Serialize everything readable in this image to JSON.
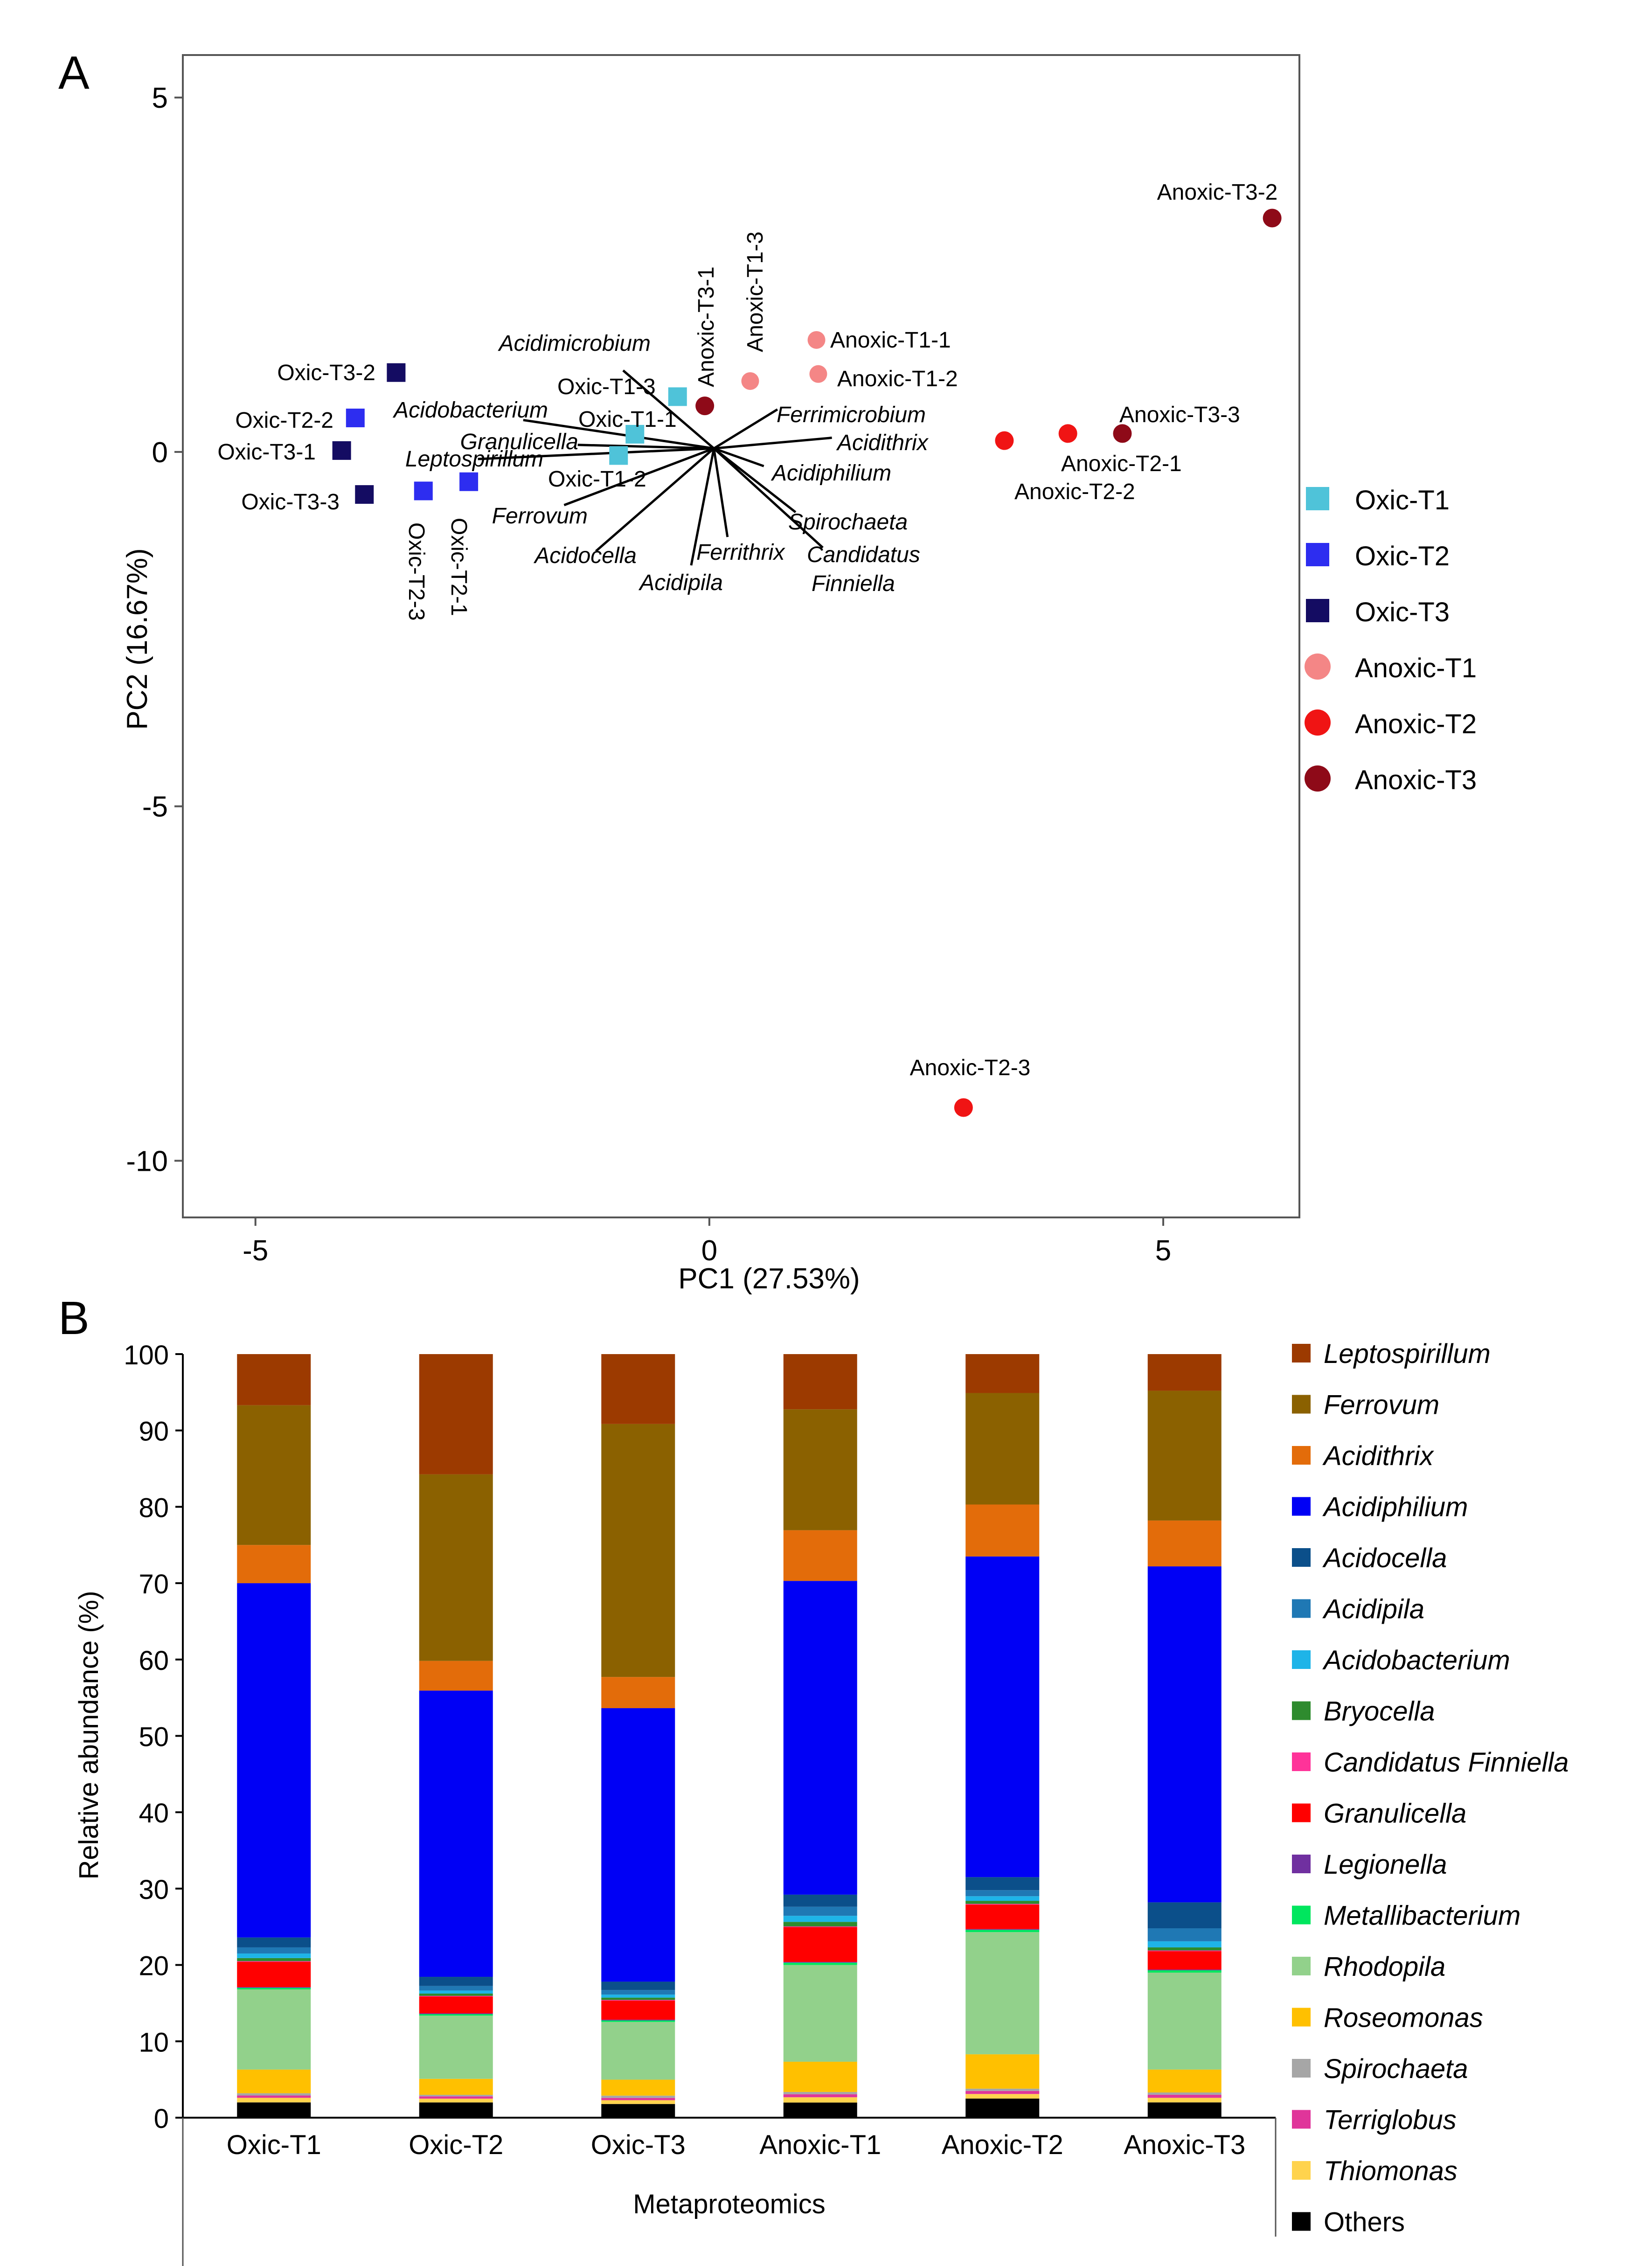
{
  "chart_data": [
    {
      "type": "scatter",
      "panel_label": "A",
      "xlabel": "PC1 (27.53%)",
      "ylabel": "PC2 (16.67%)",
      "xlim": [
        -5.8,
        6.5
      ],
      "ylim": [
        -10.8,
        5.6
      ],
      "xticks": [
        -5,
        0,
        5
      ],
      "yticks": [
        5,
        0,
        -5,
        -10
      ],
      "xtick_labels": [
        "-5",
        "0",
        "5"
      ],
      "ytick_labels": [
        "5",
        "0",
        "-5",
        "-10"
      ],
      "grid": false,
      "legend_position": "right",
      "groups": [
        {
          "name": "Oxic-T1",
          "shape": "square",
          "color": "#4FC3D9"
        },
        {
          "name": "Oxic-T2",
          "shape": "square",
          "color": "#2D2DF0"
        },
        {
          "name": "Oxic-T3",
          "shape": "square",
          "color": "#140C62"
        },
        {
          "name": "Anoxic-T1",
          "shape": "circle",
          "color": "#F48686"
        },
        {
          "name": "Anoxic-T2",
          "shape": "circle",
          "color": "#F01414"
        },
        {
          "name": "Anoxic-T3",
          "shape": "circle",
          "color": "#8E0A18"
        }
      ],
      "samples": [
        {
          "label": "Oxic-T1-1",
          "group": "Oxic-T1",
          "x": -0.82,
          "y": 0.25
        },
        {
          "label": "Oxic-T1-2",
          "group": "Oxic-T1",
          "x": -1.0,
          "y": -0.05
        },
        {
          "label": "Oxic-T1-3",
          "group": "Oxic-T1",
          "x": -0.35,
          "y": 0.78
        },
        {
          "label": "Oxic-T2-1",
          "group": "Oxic-T2",
          "x": -2.65,
          "y": -0.42
        },
        {
          "label": "Oxic-T2-2",
          "group": "Oxic-T2",
          "x": -3.9,
          "y": 0.48
        },
        {
          "label": "Oxic-T2-3",
          "group": "Oxic-T2",
          "x": -3.15,
          "y": -0.55
        },
        {
          "label": "Oxic-T3-1",
          "group": "Oxic-T3",
          "x": -4.05,
          "y": 0.02
        },
        {
          "label": "Oxic-T3-2",
          "group": "Oxic-T3",
          "x": -3.45,
          "y": 1.12
        },
        {
          "label": "Oxic-T3-3",
          "group": "Oxic-T3",
          "x": -3.8,
          "y": -0.6
        },
        {
          "label": "Anoxic-T1-1",
          "group": "Anoxic-T1",
          "x": 1.18,
          "y": 1.58
        },
        {
          "label": "Anoxic-T1-2",
          "group": "Anoxic-T1",
          "x": 1.2,
          "y": 1.1
        },
        {
          "label": "Anoxic-T1-3",
          "group": "Anoxic-T1",
          "x": 0.45,
          "y": 1.0
        },
        {
          "label": "Anoxic-T2-1",
          "group": "Anoxic-T2",
          "x": 3.95,
          "y": 0.26
        },
        {
          "label": "Anoxic-T2-2",
          "group": "Anoxic-T2",
          "x": 3.25,
          "y": 0.16
        },
        {
          "label": "Anoxic-T2-3",
          "group": "Anoxic-T2",
          "x": 2.8,
          "y": -9.25
        },
        {
          "label": "Anoxic-T3-1",
          "group": "Anoxic-T3",
          "x": -0.05,
          "y": 0.65
        },
        {
          "label": "Anoxic-T3-2",
          "group": "Anoxic-T3",
          "x": 6.2,
          "y": 3.3
        },
        {
          "label": "Anoxic-T3-3",
          "group": "Anoxic-T3",
          "x": 4.55,
          "y": 0.26
        }
      ],
      "loadings": [
        {
          "label": "Acidimicrobium",
          "x": -0.95,
          "y": 1.15
        },
        {
          "label": "Acidobacterium",
          "x": -2.05,
          "y": 0.45
        },
        {
          "label": "Granulicella",
          "x": -1.45,
          "y": 0.1
        },
        {
          "label": "Leptospirillum",
          "x": -2.55,
          "y": -0.1
        },
        {
          "label": "Ferrovum",
          "x": -1.6,
          "y": -0.75
        },
        {
          "label": "Acidocella",
          "x": -1.25,
          "y": -1.4
        },
        {
          "label": "Ferrimicrobium",
          "x": 0.75,
          "y": 0.6
        },
        {
          "label": "Acidithrix",
          "x": 1.35,
          "y": 0.2
        },
        {
          "label": "Acidiphilium",
          "x": 0.6,
          "y": -0.2
        },
        {
          "label": "Spirochaeta",
          "x": 0.95,
          "y": -0.85
        },
        {
          "label": "Candidatus Finniella",
          "x": 1.25,
          "y": -1.35
        },
        {
          "label": "Ferrithrix",
          "x": 0.2,
          "y": -1.2
        },
        {
          "label": "Acidipila",
          "x": -0.2,
          "y": -1.6
        }
      ]
    },
    {
      "type": "bar",
      "stacked": true,
      "panel_label": "B",
      "title": "",
      "xlabel": "Metaproteomics",
      "ylabel": "Relative abundance (%)",
      "ylim": [
        0,
        100
      ],
      "yticks": [
        0,
        10,
        20,
        30,
        40,
        50,
        60,
        70,
        80,
        90,
        100
      ],
      "grid": false,
      "legend_position": "right",
      "categories": [
        "Oxic-T1",
        "Oxic-T2",
        "Oxic-T3",
        "Anoxic-T1",
        "Anoxic-T2",
        "Anoxic-T3"
      ],
      "series": [
        {
          "name": "Others",
          "italic": false,
          "color": "#000000",
          "values": [
            2.0,
            2.0,
            1.8,
            2.0,
            2.5,
            2.0
          ]
        },
        {
          "name": "Thiomonas",
          "italic": true,
          "color": "#FFD34D",
          "values": [
            0.6,
            0.5,
            0.5,
            0.7,
            0.6,
            0.6
          ]
        },
        {
          "name": "Terriglobus",
          "italic": true,
          "color": "#E0359A",
          "values": [
            0.3,
            0.3,
            0.3,
            0.4,
            0.4,
            0.4
          ]
        },
        {
          "name": "Spirochaeta",
          "italic": true,
          "color": "#A6A6A6",
          "values": [
            0.3,
            0.2,
            0.3,
            0.3,
            0.3,
            0.3
          ]
        },
        {
          "name": "Roseomonas",
          "italic": true,
          "color": "#FFC000",
          "values": [
            3.1,
            2.1,
            2.1,
            4.0,
            4.5,
            3.0
          ]
        },
        {
          "name": "Rhodopila",
          "italic": true,
          "color": "#92D18B",
          "values": [
            10.5,
            8.3,
            7.6,
            12.8,
            16.0,
            12.7
          ]
        },
        {
          "name": "Metallibacterium",
          "italic": true,
          "color": "#00E65E",
          "values": [
            0.2,
            0.2,
            0.2,
            0.3,
            0.3,
            0.3
          ]
        },
        {
          "name": "Legionella",
          "italic": true,
          "color": "#7030A0",
          "values": [
            0.1,
            0.1,
            0.1,
            0.1,
            0.1,
            0.1
          ]
        },
        {
          "name": "Granulicella",
          "italic": true,
          "color": "#FF0000",
          "values": [
            3.3,
            2.2,
            2.5,
            4.6,
            3.2,
            2.4
          ]
        },
        {
          "name": "Candidatus Finniella",
          "italic": true,
          "color": "#FF3399",
          "values": [
            0.1,
            0.1,
            0.1,
            0.1,
            0.1,
            0.1
          ]
        },
        {
          "name": "Bryocella",
          "italic": true,
          "color": "#2E8B2E",
          "values": [
            0.4,
            0.3,
            0.3,
            0.6,
            0.4,
            0.4
          ]
        },
        {
          "name": "Acidobacterium",
          "italic": true,
          "color": "#1EB4E8",
          "values": [
            0.6,
            0.4,
            0.4,
            0.8,
            0.6,
            0.8
          ]
        },
        {
          "name": "Acidipila",
          "italic": true,
          "color": "#1F78B4",
          "values": [
            0.8,
            0.6,
            0.6,
            1.2,
            0.8,
            1.7
          ]
        },
        {
          "name": "Acidocella",
          "italic": true,
          "color": "#0B4F8A",
          "values": [
            1.3,
            1.2,
            1.1,
            1.6,
            1.7,
            3.4
          ]
        },
        {
          "name": "Acidiphilium",
          "italic": true,
          "color": "#0000F5",
          "values": [
            46.4,
            37.6,
            36.0,
            41.5,
            42.0,
            44.0
          ]
        },
        {
          "name": "Acidithrix",
          "italic": true,
          "color": "#E36C0A",
          "values": [
            5.0,
            3.9,
            4.1,
            6.7,
            6.8,
            6.0
          ]
        },
        {
          "name": "Ferrovum",
          "italic": true,
          "color": "#8B6100",
          "values": [
            18.3,
            24.5,
            33.3,
            16.0,
            14.6,
            17.0
          ]
        },
        {
          "name": "Leptospirillum",
          "italic": true,
          "color": "#9C3A00",
          "values": [
            6.7,
            15.8,
            9.2,
            7.3,
            5.1,
            4.8
          ]
        }
      ]
    }
  ]
}
